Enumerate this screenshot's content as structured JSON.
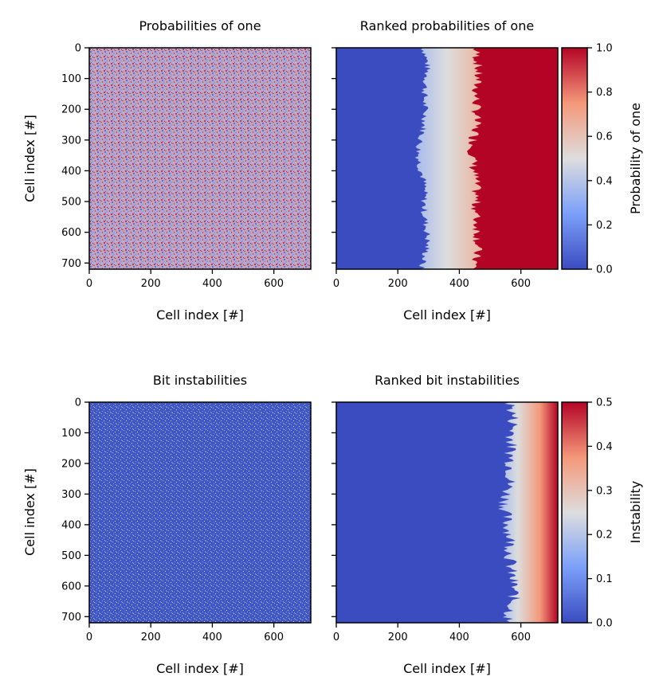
{
  "chart_data": [
    {
      "type": "heatmap",
      "title": "Probabilities of one",
      "xlabel": "Cell index [#]",
      "ylabel": "Cell index [#]",
      "xlim": [
        0,
        720
      ],
      "ylim": [
        720,
        0
      ],
      "xticks": [
        0,
        200,
        400,
        600
      ],
      "yticks": [
        0,
        100,
        200,
        300,
        400,
        500,
        600,
        700
      ],
      "pattern": "random_uniform",
      "colormap": "coolwarm",
      "vmin": 0.0,
      "vmax": 1.0
    },
    {
      "type": "heatmap",
      "title": "Ranked probabilities of one",
      "xlabel": "Cell index [#]",
      "ylabel": "",
      "xlim": [
        0,
        720
      ],
      "ylim": [
        720,
        0
      ],
      "xticks": [
        0,
        200,
        400,
        600
      ],
      "yticks": [
        0,
        100,
        200,
        300,
        400,
        500,
        600,
        700
      ],
      "pattern": "ranked_sorted",
      "transition_start": 270,
      "transition_end": 470,
      "colormap": "coolwarm",
      "vmin": 0.0,
      "vmax": 1.0,
      "colorbar": {
        "label": "Probability of one",
        "ticks": [
          "0.0",
          "0.2",
          "0.4",
          "0.6",
          "0.8",
          "1.0"
        ]
      }
    },
    {
      "type": "heatmap",
      "title": "Bit instabilities",
      "xlabel": "Cell index [#]",
      "ylabel": "Cell index [#]",
      "xlim": [
        0,
        720
      ],
      "ylim": [
        720,
        0
      ],
      "xticks": [
        0,
        200,
        400,
        600
      ],
      "yticks": [
        0,
        100,
        200,
        300,
        400,
        500,
        600,
        700
      ],
      "pattern": "sparse_random",
      "colormap": "coolwarm",
      "vmin": 0.0,
      "vmax": 0.5
    },
    {
      "type": "heatmap",
      "title": "Ranked bit instabilities",
      "xlabel": "Cell index [#]",
      "ylabel": "",
      "xlim": [
        0,
        720
      ],
      "ylim": [
        720,
        0
      ],
      "xticks": [
        0,
        200,
        400,
        600
      ],
      "yticks": [
        0,
        100,
        200,
        300,
        400,
        500,
        600,
        700
      ],
      "pattern": "ranked_tail",
      "transition_start": 540,
      "transition_end": 720,
      "colormap": "coolwarm",
      "vmin": 0.0,
      "vmax": 0.5,
      "colorbar": {
        "label": "Instability",
        "ticks": [
          "0.0",
          "0.1",
          "0.2",
          "0.3",
          "0.4",
          "0.5"
        ]
      }
    }
  ]
}
